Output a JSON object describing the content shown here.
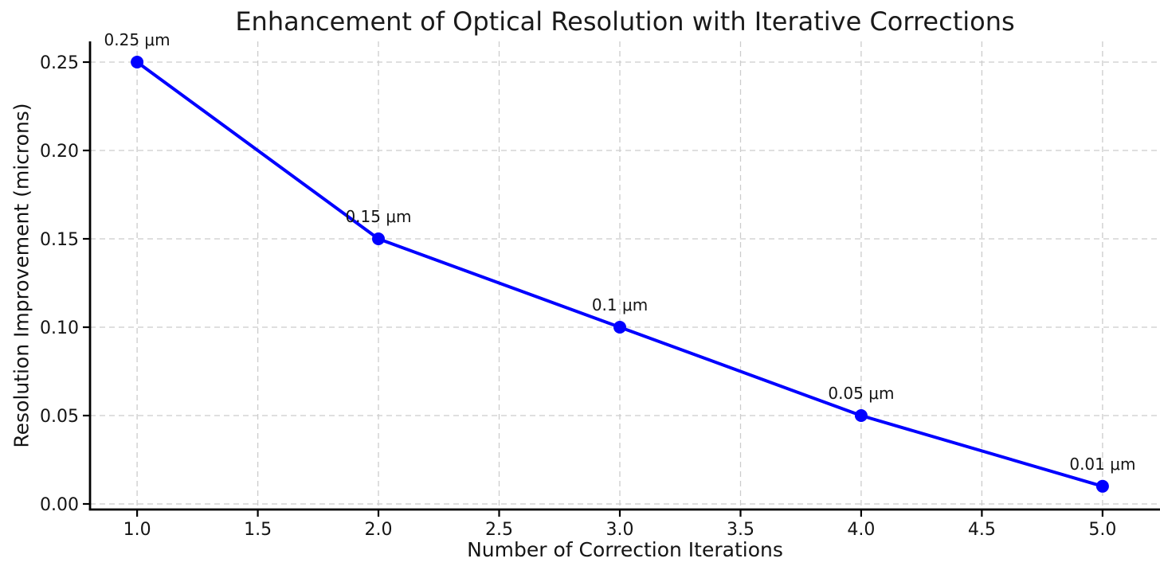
{
  "chart_data": {
    "type": "line",
    "title": "Enhancement of Optical Resolution with Iterative Corrections",
    "xlabel": "Number of Correction Iterations",
    "ylabel": "Resolution Improvement (microns)",
    "series": [
      {
        "name": "resolution-improvement",
        "x": [
          1,
          2,
          3,
          4,
          5
        ],
        "y": [
          0.25,
          0.15,
          0.1,
          0.05,
          0.01
        ],
        "point_labels": [
          "0.25 μm",
          "0.15 μm",
          "0.1 μm",
          "0.05 μm",
          "0.01 μm"
        ]
      }
    ],
    "xticks": [
      1.0,
      1.5,
      2.0,
      2.5,
      3.0,
      3.5,
      4.0,
      4.5,
      5.0
    ],
    "xtick_labels": [
      "1.0",
      "1.5",
      "2.0",
      "2.5",
      "3.0",
      "3.5",
      "4.0",
      "4.5",
      "5.0"
    ],
    "yticks": [
      0.0,
      0.05,
      0.1,
      0.15,
      0.2,
      0.25
    ],
    "ytick_labels": [
      "0.00",
      "0.05",
      "0.10",
      "0.15",
      "0.20",
      "0.25"
    ],
    "xlim": [
      0.805,
      5.238
    ],
    "ylim": [
      -0.00315,
      0.2617
    ],
    "grid": true,
    "grid_style": "dashed",
    "legend": "none",
    "colors": {
      "line": "#0000ff",
      "marker": "#0000ff",
      "grid": "#cccccc",
      "spine": "#000000",
      "text": "#141414",
      "background": "#ffffff"
    }
  }
}
